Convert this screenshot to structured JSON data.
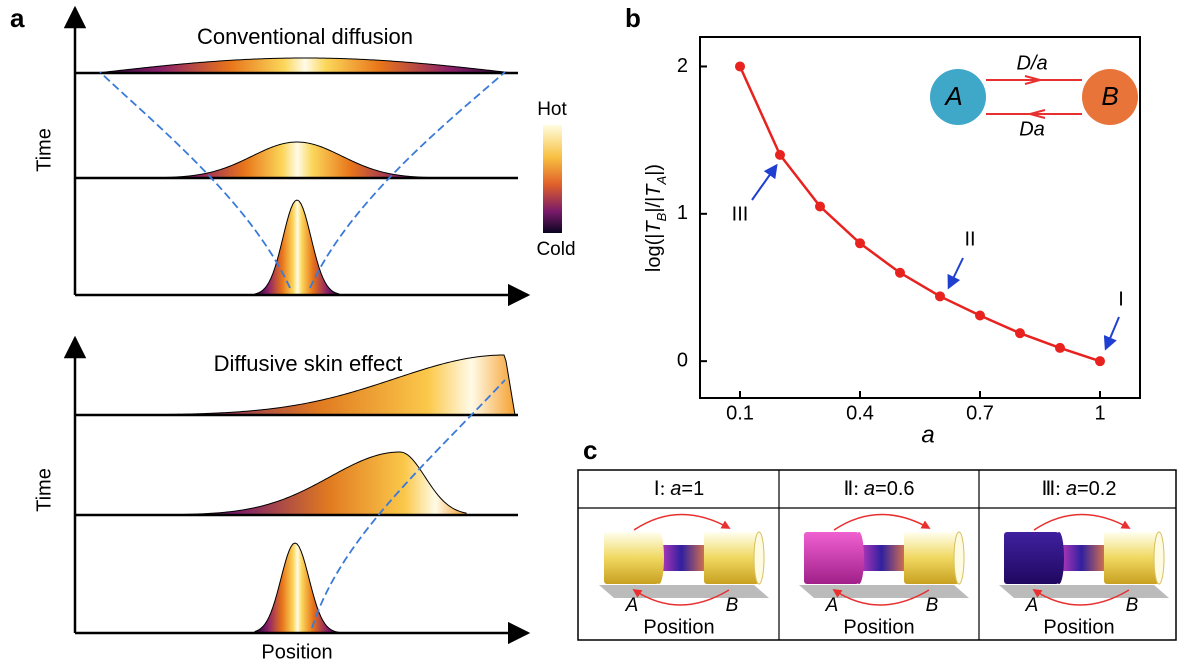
{
  "panel_a": {
    "label": "a",
    "top_title": "Conventional diffusion",
    "bottom_title": "Diffusive skin effect",
    "time_top": "Time",
    "time_bottom": "Time",
    "position": "Position",
    "hot": "Hot",
    "cold": "Cold"
  },
  "chart_data": {
    "type": "line",
    "panel_label": "b",
    "x": [
      0.1,
      0.2,
      0.3,
      0.4,
      0.5,
      0.6,
      0.7,
      0.8,
      0.9,
      1
    ],
    "series": [
      {
        "color": "#e8221e",
        "values": [
          2,
          1.4,
          1.05,
          0.8,
          0.6,
          0.44,
          0.31,
          0.19,
          0.09,
          0
        ]
      }
    ],
    "xlim": [
      0,
      1.1
    ],
    "ylim": [
      -0.25,
      2.2
    ],
    "xticks": [
      0.1,
      0.4,
      0.7,
      1
    ],
    "yticks": [
      0,
      1,
      2
    ],
    "x_label": "a",
    "y_label_parts": [
      "log(|",
      "T",
      "B",
      "|/|",
      "T",
      "A",
      "|)"
    ],
    "annotations": [
      "III",
      "II",
      "I"
    ],
    "inset": {
      "node_a": "A",
      "node_b": "B",
      "top_rate": "D/a",
      "bottom_rate": "Da"
    }
  },
  "panel_c": {
    "label": "c",
    "columns": [
      {
        "header": [
          "Ⅰ: ",
          "a",
          "=1"
        ],
        "a": "A",
        "b": "B",
        "position": "Position"
      },
      {
        "header": [
          "Ⅱ: ",
          "a",
          "=0.6"
        ],
        "a": "A",
        "b": "B",
        "position": "Position"
      },
      {
        "header": [
          "Ⅲ: ",
          "a",
          "=0.2"
        ],
        "a": "A",
        "b": "B",
        "position": "Position"
      }
    ]
  }
}
